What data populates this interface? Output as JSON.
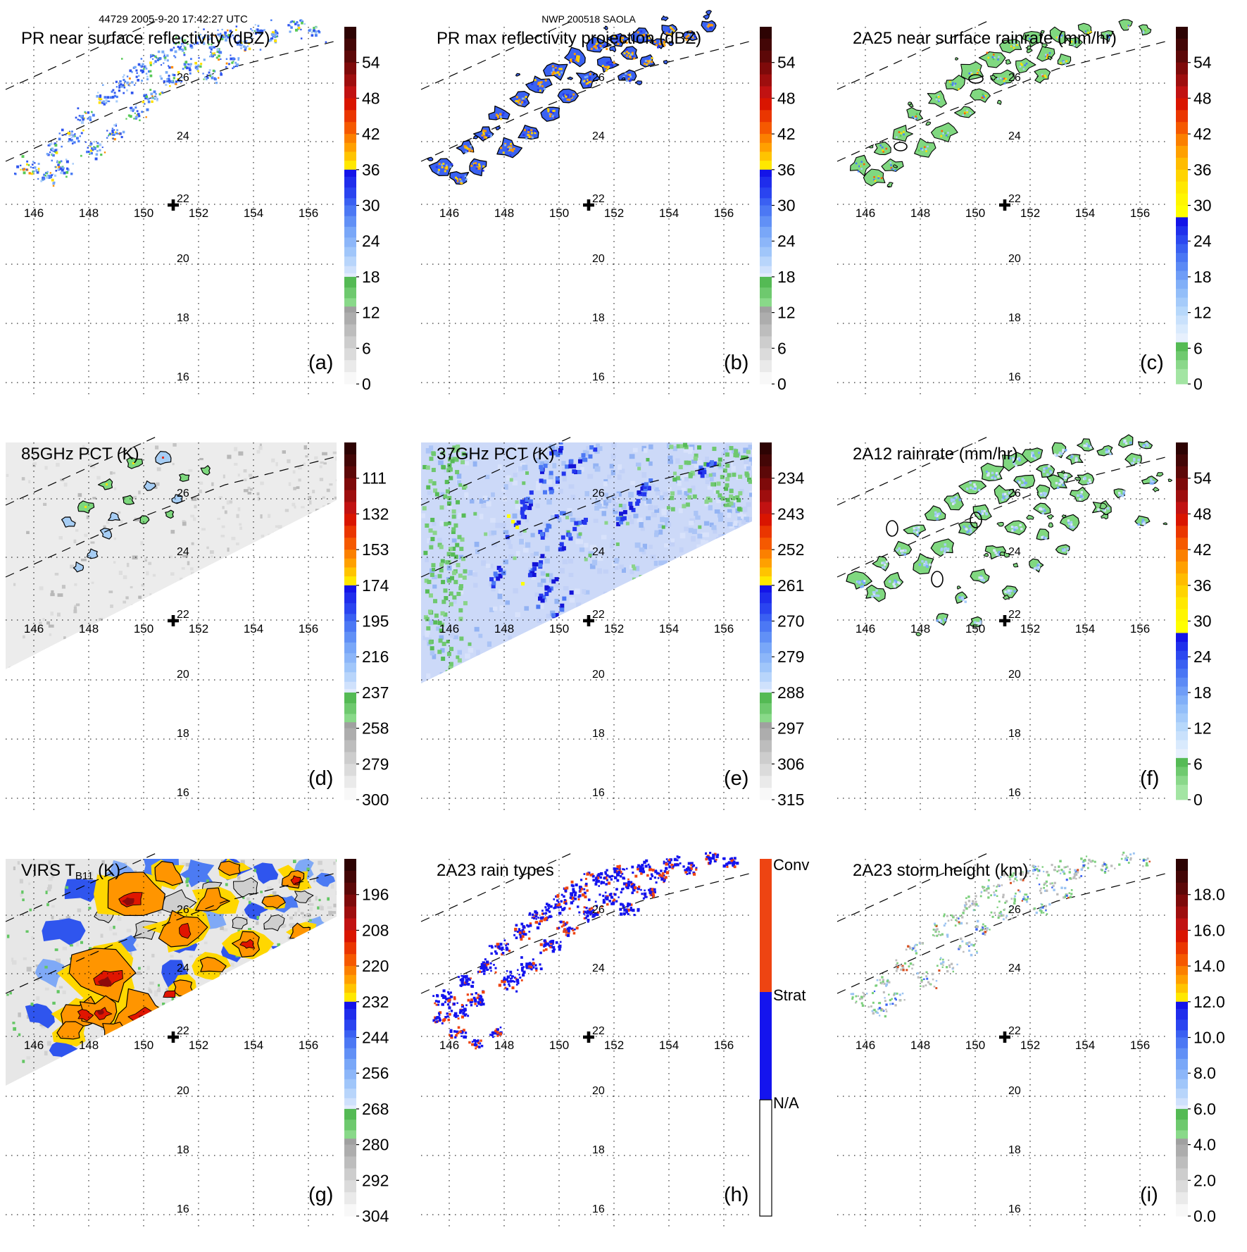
{
  "figure": {
    "header_left": "44729 2005-9-20 17:42:27 UTC",
    "header_center": "NWP 200518 SAOLA"
  },
  "axes": {
    "lon_labels": [
      "146",
      "148",
      "150",
      "152",
      "154",
      "156"
    ],
    "lat_labels": [
      "26",
      "24",
      "22",
      "20",
      "18",
      "16"
    ]
  },
  "marker": {
    "symbol": "+",
    "lon": 151.1,
    "lat": 22.0
  },
  "chart_data": [
    {
      "panel": "(a)",
      "type": "heatmap",
      "title": "PR near surface reflectivity (dBZ)",
      "unit": "dBZ",
      "scale": "reflectivity",
      "field": "pr-speckle",
      "colorbar_ticks": [
        "54",
        "48",
        "42",
        "36",
        "30",
        "24",
        "18",
        "12",
        "6",
        "0"
      ]
    },
    {
      "panel": "(b)",
      "type": "heatmap",
      "title": "PR max reflectivity projection (dBZ)",
      "unit": "dBZ",
      "scale": "reflectivity",
      "field": "pr-blobs",
      "colorbar_ticks": [
        "54",
        "48",
        "42",
        "36",
        "30",
        "24",
        "18",
        "12",
        "6",
        "0"
      ]
    },
    {
      "panel": "(c)",
      "type": "heatmap",
      "title": "2A25 near surface rainrate (mm/hr)",
      "unit": "mm/hr",
      "scale": "rainrate",
      "field": "green-blobs",
      "colorbar_ticks": [
        "54",
        "48",
        "42",
        "36",
        "30",
        "24",
        "18",
        "12",
        "6",
        "0"
      ]
    },
    {
      "panel": "(d)",
      "type": "heatmap",
      "title": "85GHz PCT (K)",
      "unit": "K",
      "scale": "pct85",
      "field": "tmi85",
      "colorbar_ticks": [
        "111",
        "132",
        "153",
        "174",
        "195",
        "216",
        "237",
        "258",
        "279",
        "300"
      ]
    },
    {
      "panel": "(e)",
      "type": "heatmap",
      "title": "37GHz PCT (K)",
      "unit": "K",
      "scale": "pct37",
      "field": "tmi37",
      "colorbar_ticks": [
        "234",
        "243",
        "252",
        "261",
        "270",
        "279",
        "288",
        "297",
        "306",
        "315"
      ]
    },
    {
      "panel": "(f)",
      "type": "heatmap",
      "title": "2A12 rainrate (mm/hr)",
      "unit": "mm/hr",
      "scale": "rainrate",
      "field": "green-blobs-wide",
      "colorbar_ticks": [
        "54",
        "48",
        "42",
        "36",
        "30",
        "24",
        "18",
        "12",
        "6",
        "0"
      ]
    },
    {
      "panel": "(g)",
      "type": "heatmap",
      "title": "VIRS T",
      "title_sub": "B11",
      "title_end": " (K)",
      "unit": "K",
      "scale": "virs",
      "field": "virs",
      "colorbar_ticks": [
        "196",
        "208",
        "220",
        "232",
        "244",
        "256",
        "268",
        "280",
        "292",
        "304"
      ]
    },
    {
      "panel": "(h)",
      "type": "heatmap",
      "title": "2A23 rain types",
      "scale": "types",
      "field": "raintypes",
      "categories": [
        {
          "label": "Conv",
          "color": "#ee4412"
        },
        {
          "label": "Strat",
          "color": "#1414ee"
        },
        {
          "label": "N/A",
          "color": "#ffffff"
        }
      ]
    },
    {
      "panel": "(i)",
      "type": "heatmap",
      "title": "2A23 storm height (km)",
      "unit": "km",
      "scale": "height",
      "field": "stormheight",
      "colorbar_ticks": [
        "18.0",
        "16.0",
        "14.0",
        "12.0",
        "10.0",
        "8.0",
        "6.0",
        "4.0",
        "2.0",
        "0.0"
      ]
    }
  ]
}
